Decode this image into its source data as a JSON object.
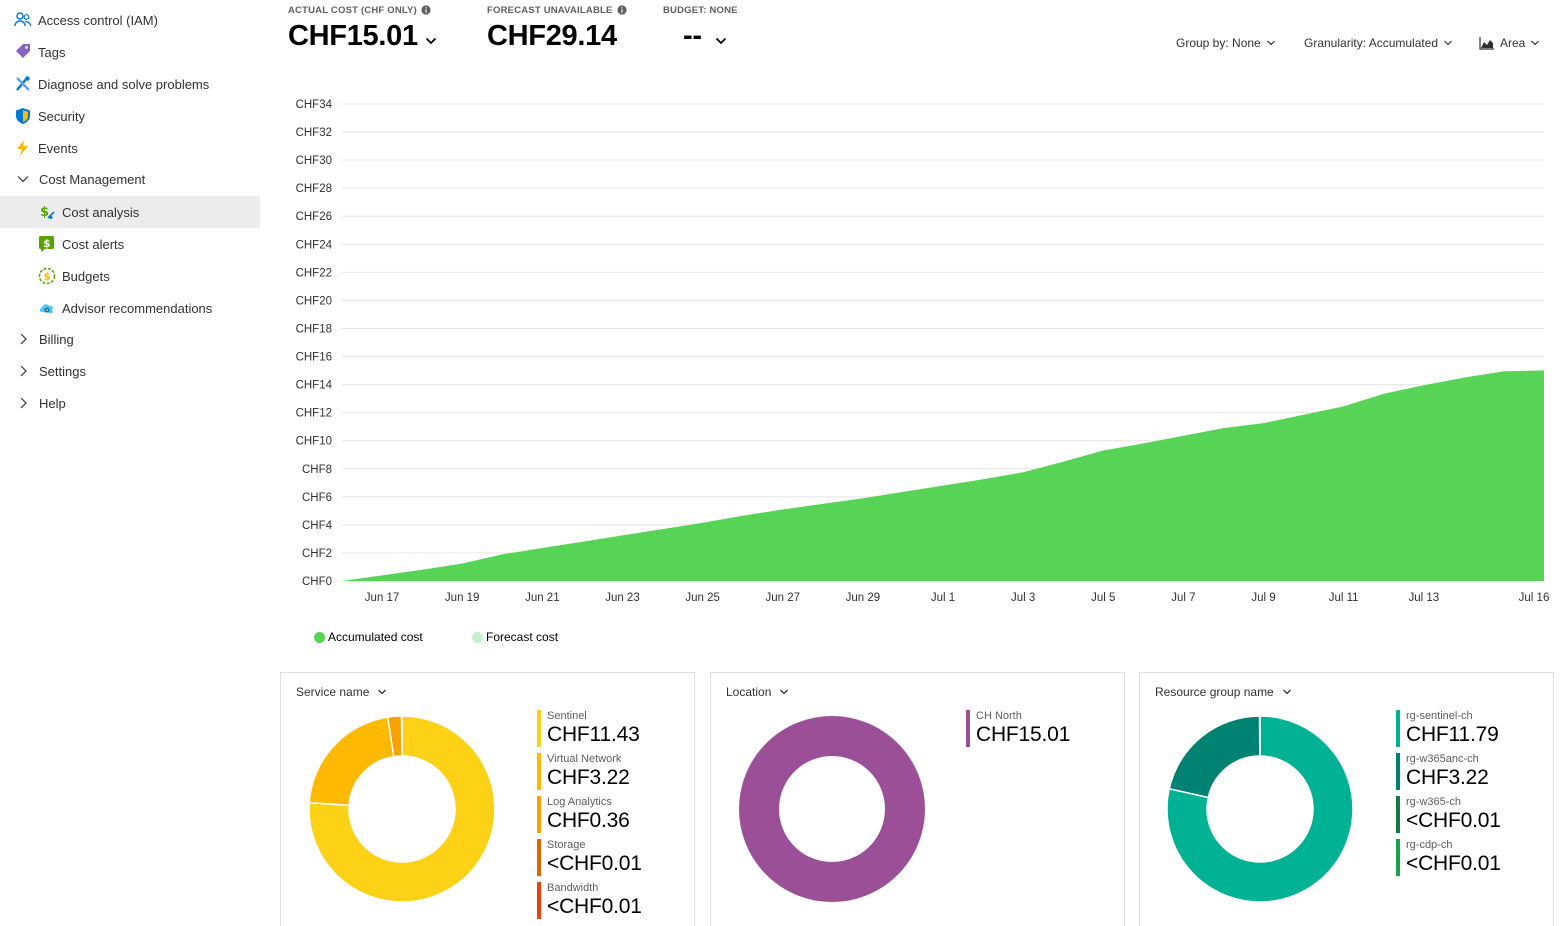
{
  "sidebar": {
    "items": [
      {
        "label": "Access control (IAM)",
        "icon": "people-icon"
      },
      {
        "label": "Tags",
        "icon": "tag-icon"
      },
      {
        "label": "Diagnose and solve problems",
        "icon": "wrench-icon"
      },
      {
        "label": "Security",
        "icon": "shield-icon"
      },
      {
        "label": "Events",
        "icon": "lightning-icon"
      },
      {
        "label": "Cost Management",
        "icon": "chevron-down-icon"
      },
      {
        "label": "Cost analysis",
        "icon": "cost-analysis-icon",
        "selected": true
      },
      {
        "label": "Cost alerts",
        "icon": "cost-alerts-icon"
      },
      {
        "label": "Budgets",
        "icon": "budgets-icon"
      },
      {
        "label": "Advisor recommendations",
        "icon": "advisor-icon"
      },
      {
        "label": "Billing",
        "icon": "chevron-right-icon"
      },
      {
        "label": "Settings",
        "icon": "chevron-right-icon"
      },
      {
        "label": "Help",
        "icon": "chevron-right-icon"
      }
    ]
  },
  "kpis": {
    "actual": {
      "label": "ACTUAL COST (CHF ONLY)",
      "value": "CHF15.01"
    },
    "forecast": {
      "label": "FORECAST UNAVAILABLE",
      "value": "CHF29.14"
    },
    "budget": {
      "label": "BUDGET: NONE",
      "value": "--"
    }
  },
  "controls": {
    "group_by": "Group by: None",
    "granularity": "Granularity: Accumulated",
    "chart_type": "Area"
  },
  "legend": {
    "accumulated": "Accumulated cost",
    "forecast": "Forecast cost"
  },
  "colors": {
    "area": "#57d356",
    "forecast": "#c9efc8",
    "grid": "#e5e5e5"
  },
  "chart_data": [
    {
      "type": "area",
      "y_tick_labels": [
        "CHF0",
        "CHF2",
        "CHF4",
        "CHF6",
        "CHF8",
        "CHF10",
        "CHF12",
        "CHF14",
        "CHF16",
        "CHF18",
        "CHF20",
        "CHF22",
        "CHF24",
        "CHF26",
        "CHF28",
        "CHF30",
        "CHF32",
        "CHF34"
      ],
      "ylim": [
        0,
        34
      ],
      "x_tick_labels": [
        "Jun 17",
        "Jun 19",
        "Jun 21",
        "Jun 23",
        "Jun 25",
        "Jun 27",
        "Jun 29",
        "Jul 1",
        "Jul 3",
        "Jul 5",
        "Jul 7",
        "Jul 9",
        "Jul 11",
        "Jul 13",
        "Jul 16"
      ],
      "x": [
        "Jun 16",
        "Jun 17",
        "Jun 18",
        "Jun 19",
        "Jun 20",
        "Jun 21",
        "Jun 22",
        "Jun 23",
        "Jun 24",
        "Jun 25",
        "Jun 26",
        "Jun 27",
        "Jun 28",
        "Jun 29",
        "Jun 30",
        "Jul 1",
        "Jul 2",
        "Jul 3",
        "Jul 4",
        "Jul 5",
        "Jul 6",
        "Jul 7",
        "Jul 8",
        "Jul 9",
        "Jul 10",
        "Jul 11",
        "Jul 12",
        "Jul 13",
        "Jul 14",
        "Jul 15",
        "Jul 16"
      ],
      "series": [
        {
          "name": "Accumulated cost",
          "values": [
            0,
            0.4,
            0.8,
            1.25,
            1.9,
            2.35,
            2.8,
            3.25,
            3.7,
            4.15,
            4.65,
            5.1,
            5.5,
            5.9,
            6.35,
            6.8,
            7.25,
            7.75,
            8.5,
            9.3,
            9.8,
            10.35,
            10.9,
            11.25,
            11.85,
            12.45,
            13.35,
            13.95,
            14.5,
            14.95,
            15.01
          ]
        }
      ]
    },
    {
      "type": "pie",
      "title": "Service name",
      "categories": [
        "Sentinel",
        "Virtual Network",
        "Log Analytics",
        "Storage",
        "Bandwidth"
      ],
      "values": [
        11.43,
        3.22,
        0.36,
        0.005,
        0.005
      ],
      "labels": [
        "CHF11.43",
        "CHF3.22",
        "CHF0.36",
        "<CHF0.01",
        "<CHF0.01"
      ],
      "colors": [
        "#fcd116",
        "#ffb900",
        "#f7a200",
        "#da6900",
        "#e8400f"
      ]
    },
    {
      "type": "pie",
      "title": "Location",
      "categories": [
        "CH North"
      ],
      "values": [
        15.01
      ],
      "labels": [
        "CHF15.01"
      ],
      "colors": [
        "#9b4f96"
      ]
    },
    {
      "type": "pie",
      "title": "Resource group name",
      "categories": [
        "rg-sentinel-ch",
        "rg-w365anc-ch",
        "rg-w365-ch",
        "rg-cdp-ch"
      ],
      "values": [
        11.79,
        3.22,
        0.005,
        0.005
      ],
      "labels": [
        "CHF11.79",
        "CHF3.22",
        "<CHF0.01",
        "<CHF0.01"
      ],
      "colors": [
        "#00b294",
        "#008272",
        "#107c41",
        "#16a34a"
      ]
    }
  ]
}
